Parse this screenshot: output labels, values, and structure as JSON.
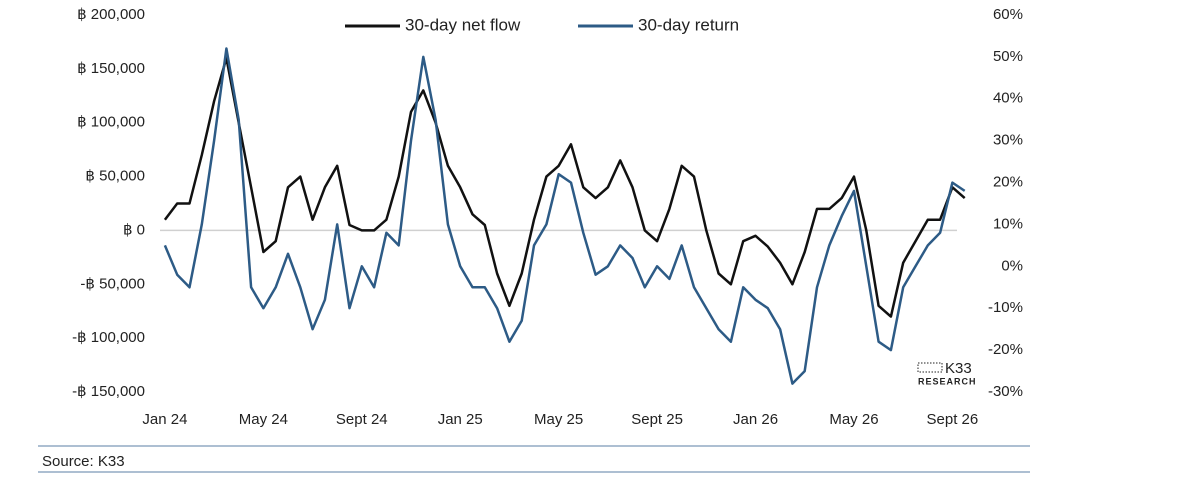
{
  "chart_data": {
    "type": "line",
    "source": "Source: K33",
    "logo": {
      "name": "K33",
      "subtitle": "RESEARCH"
    },
    "legend_position": "top",
    "xlim": [
      -0.2,
      33
    ],
    "xticks": [
      {
        "value": 0,
        "label": "Jan 24"
      },
      {
        "value": 4,
        "label": "May 24"
      },
      {
        "value": 8,
        "label": "Sept 24"
      },
      {
        "value": 12,
        "label": "Jan 25"
      },
      {
        "value": 16,
        "label": "May 25"
      },
      {
        "value": 20,
        "label": "Sept 25"
      },
      {
        "value": 24,
        "label": "Jan 26"
      },
      {
        "value": 28,
        "label": "May 26"
      },
      {
        "value": 32,
        "label": "Sept 26"
      }
    ],
    "ylim": [
      -150000,
      200000
    ],
    "yticks": [
      {
        "value": 200000,
        "label": "฿ 200,000"
      },
      {
        "value": 150000,
        "label": "฿ 150,000"
      },
      {
        "value": 100000,
        "label": "฿ 100,000"
      },
      {
        "value": 50000,
        "label": "฿ 50,000"
      },
      {
        "value": 0,
        "label": "฿ 0"
      },
      {
        "value": -50000,
        "label": "-฿ 50,000"
      },
      {
        "value": -100000,
        "label": "-฿ 100,000"
      },
      {
        "value": -150000,
        "label": "-฿ 150,000"
      }
    ],
    "y2lim": [
      -30,
      60
    ],
    "y2ticks": [
      {
        "value": 60,
        "label": "60%"
      },
      {
        "value": 50,
        "label": "50%"
      },
      {
        "value": 40,
        "label": "40%"
      },
      {
        "value": 30,
        "label": "30%"
      },
      {
        "value": 20,
        "label": "20%"
      },
      {
        "value": 10,
        "label": "10%"
      },
      {
        "value": 0,
        "label": "0%"
      },
      {
        "value": -10,
        "label": "-10%"
      },
      {
        "value": -20,
        "label": "-20%"
      },
      {
        "value": -30,
        "label": "-30%"
      }
    ],
    "x": [
      0,
      0.5,
      1,
      1.5,
      2,
      2.5,
      3,
      3.5,
      4,
      4.5,
      5,
      5.5,
      6,
      6.5,
      7,
      7.5,
      8,
      8.5,
      9,
      9.5,
      10,
      10.5,
      11,
      11.5,
      12,
      12.5,
      13,
      13.5,
      14,
      14.5,
      15,
      15.5,
      16,
      16.5,
      17,
      17.5,
      18,
      18.5,
      19,
      19.5,
      20,
      20.5,
      21,
      21.5,
      22,
      22.5,
      23,
      23.5,
      24,
      24.5,
      25,
      25.5,
      26,
      26.5,
      27,
      27.5,
      28,
      28.5,
      29,
      29.5,
      30,
      30.5,
      31,
      31.5,
      32,
      32.5
    ],
    "series": [
      {
        "name": "30-day net flow",
        "color": "#111111",
        "values": [
          10000,
          25000,
          25000,
          70000,
          120000,
          160000,
          100000,
          40000,
          -20000,
          -10000,
          40000,
          50000,
          10000,
          40000,
          60000,
          5000,
          0,
          0,
          10000,
          50000,
          110000,
          130000,
          100000,
          60000,
          40000,
          15000,
          5000,
          -40000,
          -70000,
          -40000,
          10000,
          50000,
          60000,
          80000,
          40000,
          30000,
          40000,
          65000,
          40000,
          0,
          -10000,
          20000,
          60000,
          50000,
          0,
          -40000,
          -50000,
          -10000,
          -5000,
          -15000,
          -30000,
          -50000,
          -20000,
          20000,
          20000,
          30000,
          50000,
          0,
          -70000,
          -80000,
          -30000,
          -10000,
          10000,
          10000,
          40000,
          30000
        ]
      },
      {
        "name": "30-day return",
        "color": "#2d5b86",
        "axis": "y2",
        "values": [
          5,
          -2,
          -5,
          10,
          30,
          52,
          35,
          -5,
          -10,
          -5,
          3,
          -5,
          -15,
          -8,
          10,
          -10,
          0,
          -5,
          8,
          5,
          30,
          50,
          35,
          10,
          0,
          -5,
          -5,
          -10,
          -18,
          -13,
          5,
          10,
          22,
          20,
          8,
          -2,
          0,
          5,
          2,
          -5,
          0,
          -3,
          5,
          -5,
          -10,
          -15,
          -18,
          -5,
          -8,
          -10,
          -15,
          -28,
          -25,
          -5,
          5,
          12,
          18,
          0,
          -18,
          -20,
          -5,
          0,
          5,
          8,
          20,
          18
        ]
      }
    ]
  }
}
